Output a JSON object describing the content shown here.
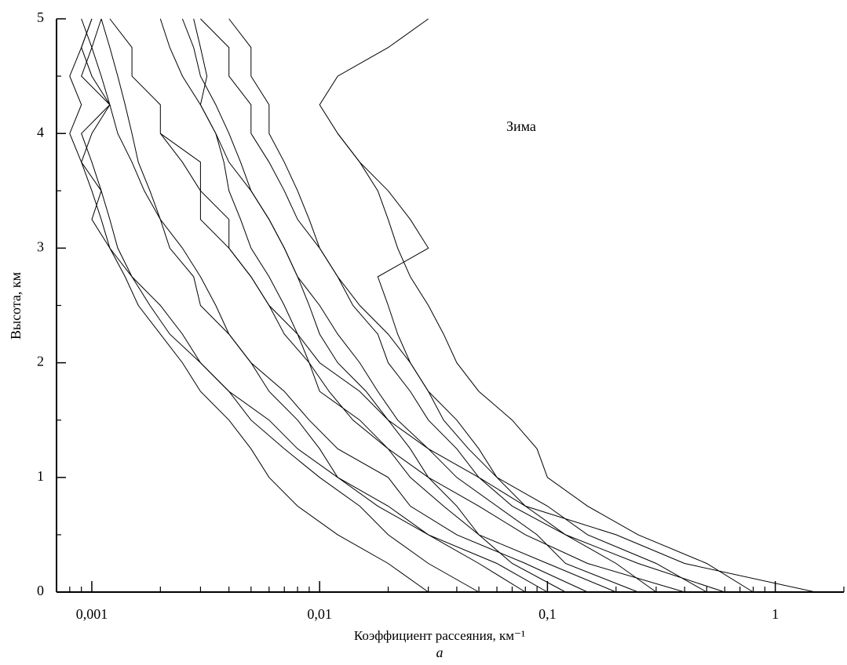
{
  "chart_data": {
    "type": "line",
    "subtitle": "а",
    "annotation": "Зима",
    "x_label": "Коэффициент рассеяния, км⁻¹",
    "y_label": "Высота, км",
    "x_log": true,
    "color": "#000000",
    "xlim": [
      0.0007,
      2
    ],
    "xticks": [
      {
        "value": 0.001,
        "label": "0,001"
      },
      {
        "value": 0.01,
        "label": "0,01"
      },
      {
        "value": 0.1,
        "label": "0,1"
      },
      1
    ],
    "xminor_ticks": [
      0.0008,
      0.0009,
      0.002,
      0.003,
      0.004,
      0.005,
      0.006,
      0.007,
      0.008,
      0.009,
      0.02,
      0.03,
      0.04,
      0.05,
      0.06,
      0.07,
      0.08,
      0.09,
      0.2,
      0.3,
      0.4,
      0.5,
      0.6,
      0.7,
      0.8,
      0.9,
      2
    ],
    "ylim": [
      0,
      5
    ],
    "yticks": [
      0,
      1,
      2,
      3,
      4,
      5
    ],
    "yminor_ticks": [
      0.5,
      1.5,
      2.5,
      3.5,
      4.5
    ],
    "y": [
      0,
      0.25,
      0.5,
      0.75,
      1,
      1.25,
      1.5,
      1.75,
      2,
      2.25,
      2.5,
      2.75,
      3,
      3.25,
      3.5,
      3.75,
      4,
      4.25,
      4.5,
      4.75,
      5
    ],
    "series": [
      {
        "values": [
          0.5,
          0.3,
          0.15,
          0.1,
          0.06,
          0.05,
          0.04,
          0.03,
          0.025,
          0.02,
          0.015,
          0.012,
          0.01,
          0.008,
          0.007,
          0.006,
          0.005,
          0.005,
          0.004,
          0.004,
          0.003
        ]
      },
      {
        "values": [
          1.5,
          0.4,
          0.2,
          0.08,
          0.05,
          0.03,
          0.02,
          0.015,
          0.01,
          0.008,
          0.006,
          0.005,
          0.004,
          0.003,
          0.003,
          0.0025,
          0.002,
          0.002,
          0.0015,
          0.0015,
          0.0012
        ]
      },
      {
        "values": [
          0.2,
          0.1,
          0.05,
          0.04,
          0.03,
          0.02,
          0.015,
          0.01,
          0.009,
          0.007,
          0.006,
          0.005,
          0.004,
          0.004,
          0.003,
          0.003,
          0.002,
          null,
          null,
          null,
          null
        ]
      },
      {
        "values": [
          0.1,
          0.06,
          0.03,
          0.02,
          0.012,
          0.008,
          0.006,
          0.004,
          0.003,
          0.0025,
          0.002,
          0.0015,
          0.0012,
          0.001,
          0.0011,
          0.0009,
          0.001,
          0.0012,
          0.0009,
          0.001,
          0.0011
        ]
      },
      {
        "values": [
          0.3,
          0.2,
          0.12,
          0.07,
          0.05,
          0.04,
          0.03,
          0.025,
          0.02,
          0.018,
          0.014,
          0.012,
          0.01,
          0.009,
          0.008,
          0.007,
          0.006,
          0.006,
          0.005,
          0.005,
          0.004
        ]
      },
      {
        "values": [
          0.05,
          0.03,
          0.02,
          0.015,
          0.01,
          0.007,
          0.005,
          0.004,
          0.003,
          0.0022,
          0.0018,
          0.0015,
          0.0013,
          0.0012,
          0.0011,
          0.001,
          0.0009,
          0.0012,
          0.001,
          0.0009,
          0.001
        ]
      },
      {
        "values": [
          0.8,
          0.5,
          0.25,
          0.15,
          0.1,
          0.09,
          0.07,
          0.05,
          0.04,
          0.035,
          0.03,
          0.025,
          0.022,
          0.02,
          0.018,
          0.015,
          0.012,
          0.01,
          0.012,
          0.02,
          0.03
        ]
      },
      {
        "values": [
          0.15,
          0.08,
          0.04,
          0.025,
          0.02,
          0.012,
          0.009,
          0.007,
          0.005,
          0.004,
          0.0035,
          0.003,
          0.0025,
          0.002,
          0.0018,
          0.0016,
          0.0015,
          0.0014,
          0.0013,
          0.0012,
          0.0011
        ]
      },
      {
        "values": [
          0.4,
          0.15,
          0.08,
          0.05,
          0.03,
          0.025,
          0.02,
          0.016,
          0.012,
          0.01,
          0.009,
          0.008,
          0.007,
          0.006,
          0.005,
          0.0045,
          0.004,
          0.0035,
          0.003,
          0.0028,
          0.0025
        ]
      },
      {
        "values": [
          0.08,
          0.05,
          0.03,
          0.018,
          0.012,
          0.01,
          0.008,
          0.006,
          0.005,
          0.004,
          0.003,
          0.0028,
          0.0022,
          0.002,
          0.0017,
          0.0015,
          0.0013,
          0.0012,
          0.0011,
          0.001,
          0.0009
        ]
      },
      {
        "values": [
          0.25,
          0.12,
          0.09,
          0.06,
          0.04,
          0.03,
          0.022,
          0.018,
          0.015,
          0.012,
          0.01,
          0.008,
          0.007,
          0.006,
          0.005,
          0.004,
          0.0035,
          0.003,
          0.0025,
          0.0022,
          0.002
        ]
      },
      {
        "values": [
          0.6,
          0.25,
          0.12,
          0.08,
          0.06,
          0.045,
          0.035,
          0.03,
          0.025,
          0.022,
          0.02,
          0.018,
          0.03,
          0.025,
          0.02,
          0.015,
          0.012,
          null,
          null,
          null,
          null
        ]
      },
      {
        "values": [
          0.03,
          0.02,
          0.012,
          0.008,
          0.006,
          0.005,
          0.004,
          0.003,
          0.0025,
          0.002,
          0.0016,
          0.0014,
          0.0012,
          0.0011,
          0.001,
          0.0009,
          0.0008,
          0.0009,
          0.0008,
          0.0009,
          0.001
        ]
      },
      {
        "values": [
          0.12,
          0.07,
          0.05,
          0.035,
          0.025,
          0.02,
          0.014,
          0.011,
          0.009,
          0.008,
          0.007,
          0.006,
          0.005,
          0.0045,
          0.004,
          0.0038,
          0.0035,
          0.003,
          0.0032,
          0.003,
          0.0028
        ]
      }
    ]
  }
}
